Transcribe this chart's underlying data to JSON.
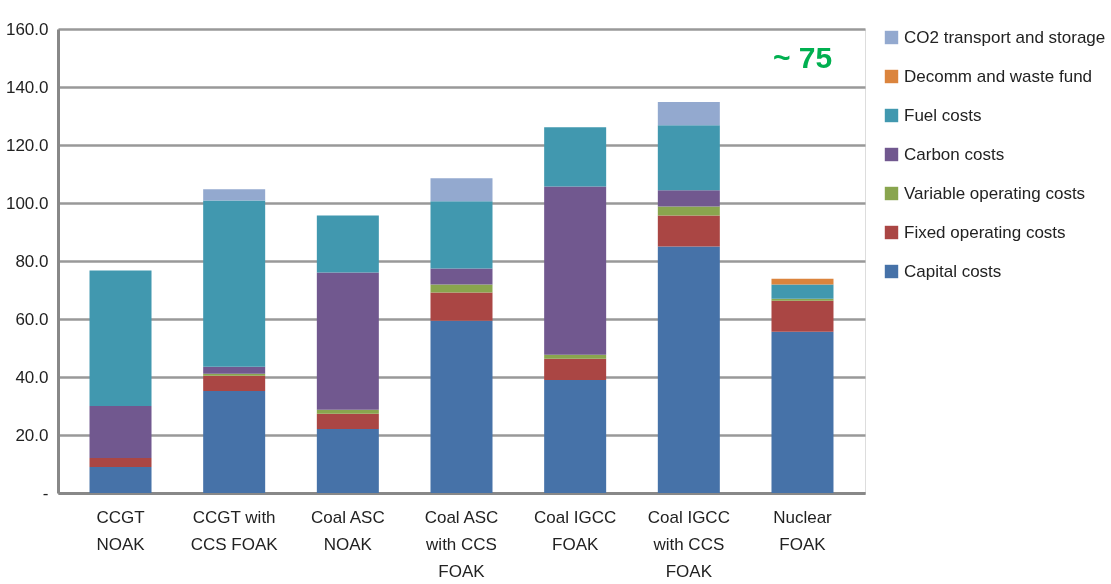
{
  "chart_data": {
    "type": "bar",
    "stacked": true,
    "categories": [
      "CCGT\nNOAK",
      "CCGT with\nCCS FOAK",
      "Coal ASC\nNOAK",
      "Coal ASC\nwith CCS\nFOAK",
      "Coal IGCC\nFOAK",
      "Coal IGCC\nwith CCS\nFOAK",
      "Nuclear\nFOAK"
    ],
    "series": [
      {
        "name": "Capital costs",
        "color": "#4672a8",
        "values": [
          9.0,
          35.2,
          22.1,
          59.4,
          39.0,
          85.0,
          55.6
        ]
      },
      {
        "name": "Fixed operating costs",
        "color": "#aa4644",
        "values": [
          3.1,
          5.2,
          5.2,
          9.7,
          7.3,
          10.7,
          10.7
        ]
      },
      {
        "name": "Variable operating costs",
        "color": "#89a54e",
        "values": [
          null,
          0.7,
          1.4,
          2.8,
          1.4,
          3.1,
          0.7
        ]
      },
      {
        "name": "Carbon costs",
        "color": "#71588f",
        "values": [
          17.9,
          2.4,
          47.3,
          5.5,
          58.0,
          5.6,
          null
        ]
      },
      {
        "name": "Fuel costs",
        "color": "#4198af",
        "values": [
          46.7,
          57.4,
          19.7,
          23.2,
          20.4,
          22.4,
          4.9
        ]
      },
      {
        "name": "Decomm and waste fund",
        "color": "#db843d",
        "values": [
          null,
          null,
          null,
          null,
          null,
          null,
          2.0
        ]
      },
      {
        "name": "CO2 transport and storage",
        "color": "#93a9cf",
        "values": [
          null,
          3.8,
          null,
          7.9,
          null,
          8.0,
          null
        ]
      }
    ],
    "ylim": [
      0,
      160
    ],
    "yticks": [
      {
        "value": 0,
        "label": "-"
      },
      {
        "value": 20,
        "label": "20.0"
      },
      {
        "value": 40,
        "label": "40.0"
      },
      {
        "value": 60,
        "label": "60.0"
      },
      {
        "value": 80,
        "label": "80.0"
      },
      {
        "value": 100,
        "label": "100.0"
      },
      {
        "value": 120,
        "label": "120.0"
      },
      {
        "value": 140,
        "label": "140.0"
      },
      {
        "value": 160,
        "label": "160.0"
      }
    ],
    "grid": "y",
    "legend": "right",
    "annotations": [
      "~ 75"
    ]
  }
}
